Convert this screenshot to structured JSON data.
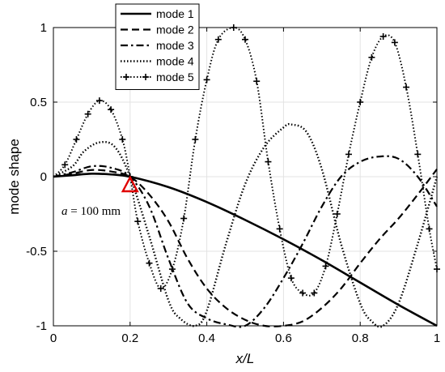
{
  "chart_data": {
    "type": "line",
    "xlabel": "x/L",
    "ylabel": "mode shape",
    "xlim": [
      0,
      1
    ],
    "ylim": [
      -1,
      1
    ],
    "xticks": [
      0,
      0.2,
      0.4,
      0.6,
      0.8,
      1
    ],
    "xtick_labels": [
      "0",
      "0.2",
      "0.4",
      "0.6",
      "0.8",
      "1"
    ],
    "yticks": [
      1,
      0.5,
      0,
      -0.5,
      -1
    ],
    "ytick_labels": [
      "1",
      "0.5",
      "0",
      "-0.5",
      "-1"
    ],
    "grid": true,
    "legend_position": "top-left",
    "annotation": {
      "text_prefix": "a",
      "text_suffix": " = 100 mm",
      "x": 0.2,
      "y": 0,
      "marker": "triangle",
      "marker_color": "#e00000"
    },
    "series": [
      {
        "name": "mode 1",
        "style": "solid",
        "points": [
          [
            0,
            0
          ],
          [
            0.05,
            0.01
          ],
          [
            0.1,
            0.02
          ],
          [
            0.15,
            0.015
          ],
          [
            0.2,
            0.0
          ],
          [
            0.3,
            -0.07
          ],
          [
            0.4,
            -0.17
          ],
          [
            0.5,
            -0.29
          ],
          [
            0.6,
            -0.42
          ],
          [
            0.7,
            -0.56
          ],
          [
            0.8,
            -0.71
          ],
          [
            0.9,
            -0.86
          ],
          [
            1.0,
            -1.0
          ]
        ]
      },
      {
        "name": "mode 2",
        "style": "dashed",
        "points": [
          [
            0,
            0
          ],
          [
            0.05,
            0.02
          ],
          [
            0.1,
            0.045
          ],
          [
            0.15,
            0.035
          ],
          [
            0.2,
            0.0
          ],
          [
            0.25,
            -0.12
          ],
          [
            0.3,
            -0.3
          ],
          [
            0.35,
            -0.55
          ],
          [
            0.4,
            -0.75
          ],
          [
            0.45,
            -0.88
          ],
          [
            0.5,
            -0.96
          ],
          [
            0.55,
            -1.0
          ],
          [
            0.6,
            -1.0
          ],
          [
            0.65,
            -0.97
          ],
          [
            0.7,
            -0.88
          ],
          [
            0.75,
            -0.75
          ],
          [
            0.8,
            -0.58
          ],
          [
            0.85,
            -0.42
          ],
          [
            0.9,
            -0.28
          ],
          [
            0.95,
            -0.12
          ],
          [
            1.0,
            0.05
          ]
        ]
      },
      {
        "name": "mode 3",
        "style": "dashdot",
        "points": [
          [
            0,
            0
          ],
          [
            0.05,
            0.03
          ],
          [
            0.1,
            0.07
          ],
          [
            0.15,
            0.06
          ],
          [
            0.2,
            0.0
          ],
          [
            0.25,
            -0.2
          ],
          [
            0.3,
            -0.55
          ],
          [
            0.35,
            -0.85
          ],
          [
            0.4,
            -0.95
          ],
          [
            0.45,
            -0.99
          ],
          [
            0.5,
            -1.0
          ],
          [
            0.55,
            -0.88
          ],
          [
            0.6,
            -0.68
          ],
          [
            0.65,
            -0.45
          ],
          [
            0.7,
            -0.2
          ],
          [
            0.75,
            0.0
          ],
          [
            0.8,
            0.1
          ],
          [
            0.85,
            0.135
          ],
          [
            0.9,
            0.12
          ],
          [
            0.95,
            0.0
          ],
          [
            1.0,
            -0.2
          ]
        ]
      },
      {
        "name": "mode 4",
        "style": "dotted",
        "points": [
          [
            0,
            0
          ],
          [
            0.05,
            0.07
          ],
          [
            0.08,
            0.17
          ],
          [
            0.12,
            0.23
          ],
          [
            0.16,
            0.2
          ],
          [
            0.2,
            0.0
          ],
          [
            0.25,
            -0.4
          ],
          [
            0.3,
            -0.83
          ],
          [
            0.33,
            -0.95
          ],
          [
            0.37,
            -1.0
          ],
          [
            0.4,
            -0.9
          ],
          [
            0.45,
            -0.45
          ],
          [
            0.5,
            -0.05
          ],
          [
            0.55,
            0.2
          ],
          [
            0.6,
            0.33
          ],
          [
            0.62,
            0.35
          ],
          [
            0.66,
            0.3
          ],
          [
            0.7,
            0.05
          ],
          [
            0.75,
            -0.45
          ],
          [
            0.8,
            -0.85
          ],
          [
            0.83,
            -0.97
          ],
          [
            0.86,
            -1.0
          ],
          [
            0.9,
            -0.85
          ],
          [
            0.95,
            -0.45
          ],
          [
            1.0,
            0.0
          ]
        ]
      },
      {
        "name": "mode 5",
        "style": "dotted-plus",
        "points": [
          [
            0,
            0
          ],
          [
            0.03,
            0.08
          ],
          [
            0.06,
            0.25
          ],
          [
            0.09,
            0.42
          ],
          [
            0.12,
            0.51
          ],
          [
            0.15,
            0.45
          ],
          [
            0.18,
            0.25
          ],
          [
            0.2,
            0.0
          ],
          [
            0.22,
            -0.3
          ],
          [
            0.25,
            -0.58
          ],
          [
            0.28,
            -0.75
          ],
          [
            0.31,
            -0.62
          ],
          [
            0.34,
            -0.28
          ],
          [
            0.37,
            0.25
          ],
          [
            0.4,
            0.65
          ],
          [
            0.43,
            0.92
          ],
          [
            0.47,
            1.0
          ],
          [
            0.5,
            0.92
          ],
          [
            0.53,
            0.64
          ],
          [
            0.56,
            0.1
          ],
          [
            0.59,
            -0.35
          ],
          [
            0.62,
            -0.68
          ],
          [
            0.65,
            -0.78
          ],
          [
            0.68,
            -0.78
          ],
          [
            0.71,
            -0.6
          ],
          [
            0.74,
            -0.25
          ],
          [
            0.77,
            0.15
          ],
          [
            0.8,
            0.5
          ],
          [
            0.83,
            0.8
          ],
          [
            0.86,
            0.94
          ],
          [
            0.89,
            0.9
          ],
          [
            0.92,
            0.6
          ],
          [
            0.95,
            0.15
          ],
          [
            0.98,
            -0.35
          ],
          [
            1.0,
            -0.62
          ]
        ]
      }
    ]
  }
}
